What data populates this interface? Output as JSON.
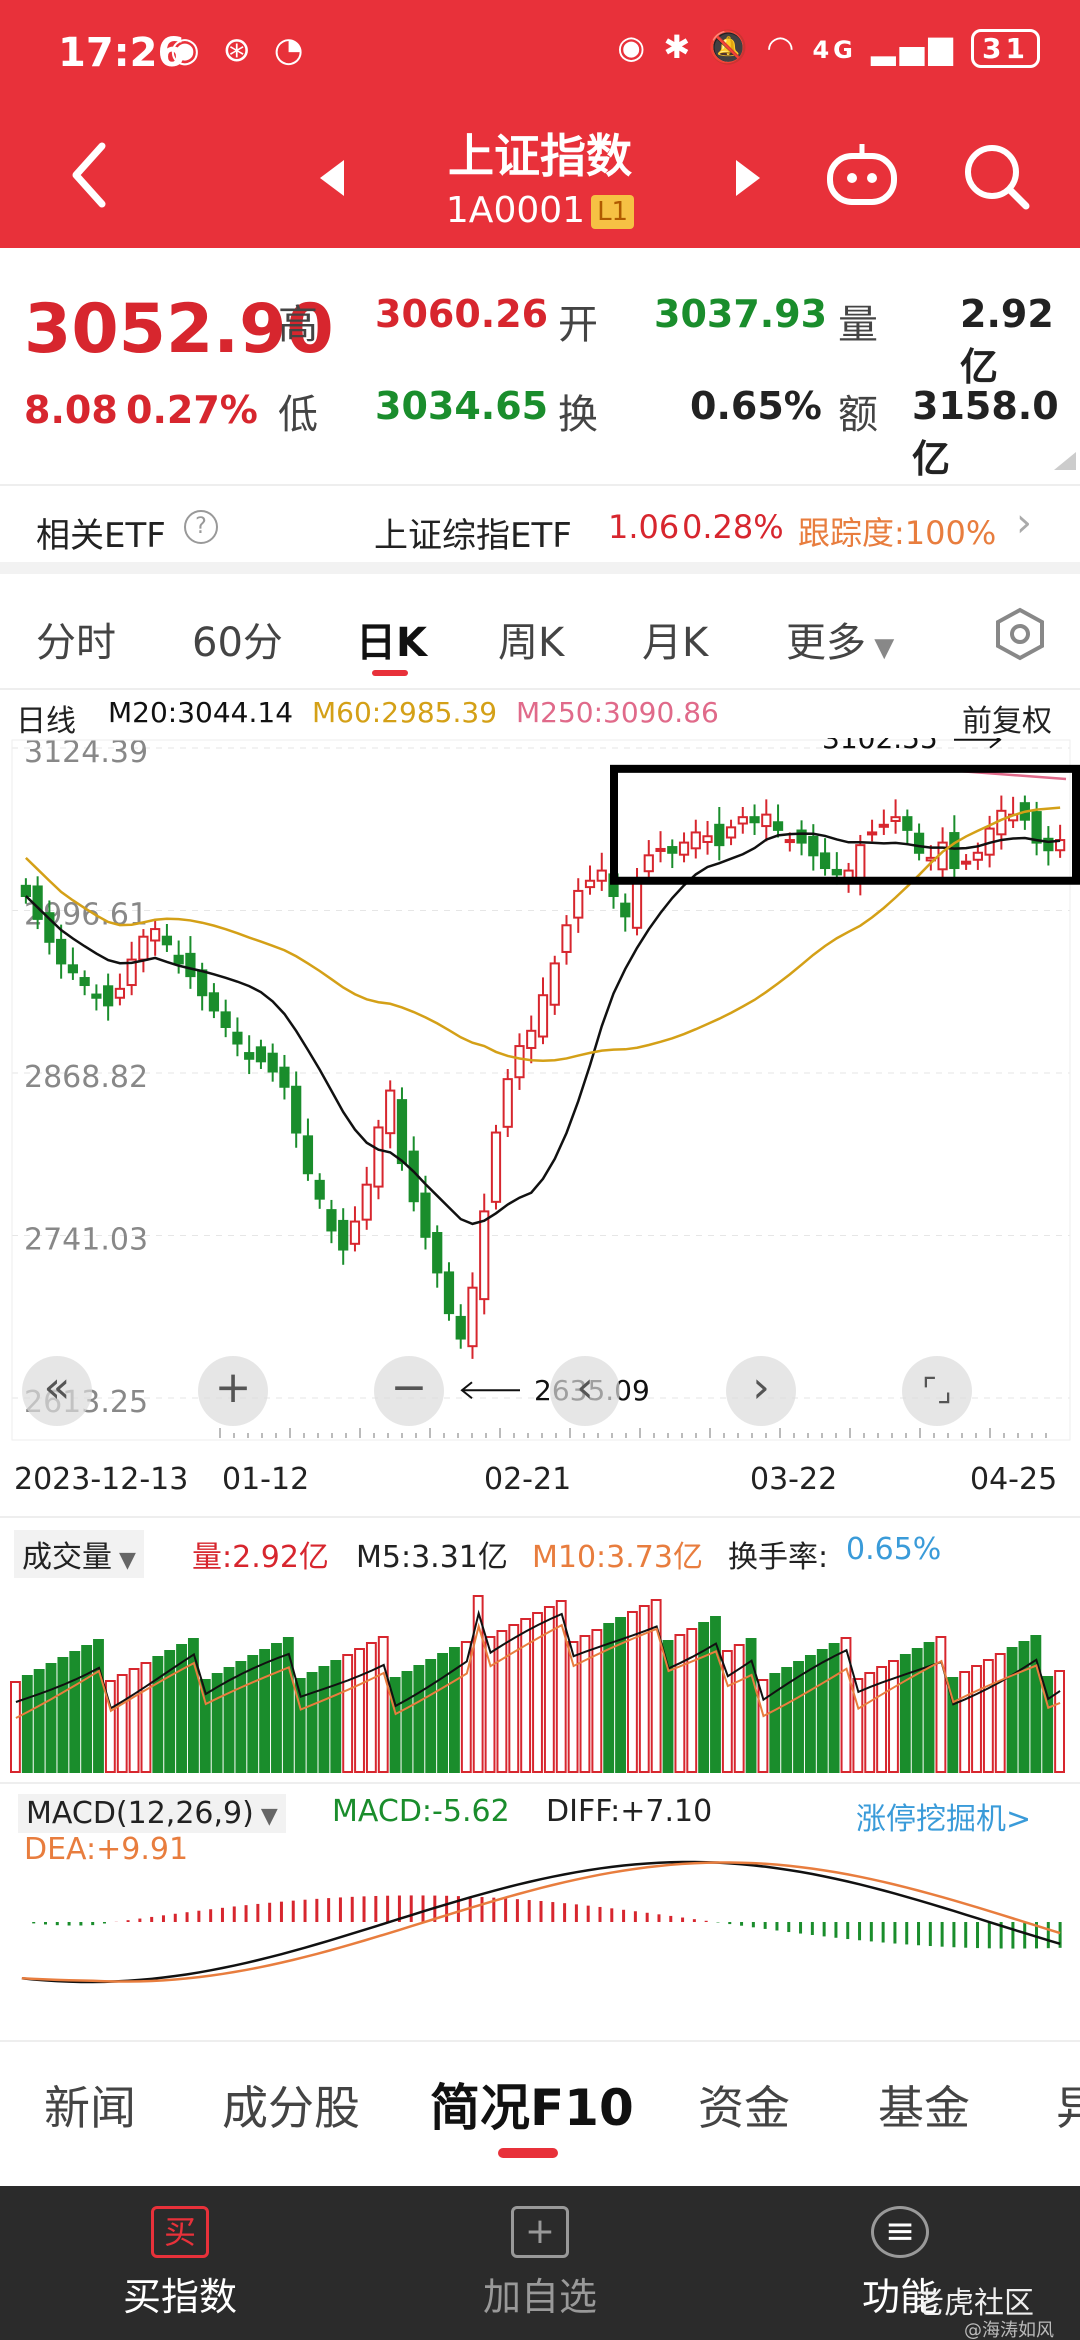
{
  "status": {
    "time": "17:26",
    "battery": "31",
    "network": "4G"
  },
  "header": {
    "title": "上证指数",
    "code": "1A0001",
    "badge": "L1"
  },
  "quote": {
    "price": "3052.90",
    "change": "8.08",
    "change_pct": "0.27%",
    "high_label": "高",
    "high": "3060.26",
    "low_label": "低",
    "low": "3034.65",
    "open_label": "开",
    "open": "3037.93",
    "turnover_label": "换",
    "turnover": "0.65%",
    "volume_label": "量",
    "volume": "2.92亿",
    "amount_label": "额",
    "amount": "3158.0亿"
  },
  "etf": {
    "label": "相关ETF",
    "name": "上证综指ETF",
    "price": "1.06",
    "pct": "0.28%",
    "tracking": "跟踪度:100%"
  },
  "tabs": [
    "分时",
    "60分",
    "日K",
    "周K",
    "月K",
    "更多"
  ],
  "kline": {
    "line_label": "日线",
    "m20": "M20:3044.14",
    "m60": "M60:2985.39",
    "m250": "M250:3090.86",
    "fq": "前复权",
    "y_ticks": [
      "3124.39",
      "2996.61",
      "2868.82",
      "2741.03",
      "2613.25"
    ],
    "x_ticks": [
      "2023-12-13",
      "01-12",
      "02-21",
      "03-22",
      "04-25"
    ],
    "high_annot": "3102.55",
    "low_annot": "2635.09"
  },
  "volume": {
    "label": "成交量",
    "vol": "量:2.92亿",
    "m5": "M5:3.31亿",
    "m10": "M10:3.73亿",
    "turnover": "换手率:",
    "turnover_val": "0.65%"
  },
  "macd": {
    "label": "MACD(12,26,9)",
    "macd": "MACD:-5.62",
    "diff": "DIFF:+7.10",
    "dea": "DEA:+9.91",
    "link": "涨停挖掘机>"
  },
  "bottom_tabs": [
    "新闻",
    "成分股",
    "简况F10",
    "资金",
    "基金",
    "异"
  ],
  "footer": {
    "buy": "买指数",
    "buy_icon": "买",
    "add": "加自选",
    "func": "功能",
    "watermark": "老虎社区",
    "sub": "@海涛如风"
  },
  "colors": {
    "up": "#d7262e",
    "down": "#1a8d2c",
    "header": "#e8313a",
    "m20": "#111111",
    "m60": "#d4a017",
    "m250": "#e06a8a"
  },
  "chart_data": {
    "type": "candlestick",
    "title": "",
    "y_range": [
      2613.25,
      3124.39
    ],
    "closes": [
      3008,
      2990,
      2972,
      2955,
      2948,
      2938,
      2928,
      2922,
      2935,
      2958,
      2976,
      2982,
      2970,
      2955,
      2945,
      2930,
      2918,
      2905,
      2892,
      2880,
      2878,
      2870,
      2858,
      2822,
      2790,
      2770,
      2745,
      2730,
      2752,
      2781,
      2826,
      2855,
      2798,
      2768,
      2740,
      2712,
      2680,
      2660,
      2700,
      2760,
      2822,
      2864,
      2890,
      2902,
      2930,
      2955,
      2985,
      3012,
      3020,
      3028,
      3008,
      2992,
      3020,
      3040,
      3045,
      3042,
      3050,
      3058,
      3055,
      3048,
      3062,
      3070,
      3066,
      3072,
      3060,
      3052,
      3050,
      3040,
      3030,
      3025,
      3028,
      3048,
      3058,
      3064,
      3070,
      3060,
      3042,
      3038,
      3050,
      3030,
      3035,
      3042,
      3061,
      3075,
      3072,
      3068,
      3050,
      3044,
      3052
    ],
    "m20_note": "black line",
    "m60_note": "gold line"
  }
}
